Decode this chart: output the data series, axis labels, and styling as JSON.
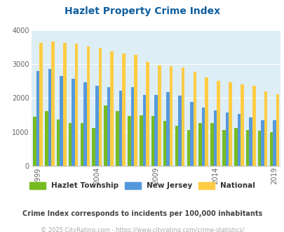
{
  "title": "Hazlet Property Crime Index",
  "title_color": "#1060a0",
  "background_color": "#ddeef6",
  "fig_background": "#ffffff",
  "years": [
    1999,
    2000,
    2001,
    2002,
    2003,
    2004,
    2005,
    2006,
    2007,
    2008,
    2009,
    2010,
    2011,
    2012,
    2013,
    2014,
    2015,
    2016,
    2017,
    2018,
    2019
  ],
  "hazlet": [
    1440,
    1620,
    1370,
    1260,
    1260,
    1110,
    1780,
    1620,
    1470,
    1500,
    1460,
    1320,
    1190,
    1060,
    1270,
    1260,
    1050,
    1110,
    1050,
    1040,
    1000
  ],
  "nj": [
    2790,
    2850,
    2650,
    2560,
    2470,
    2360,
    2310,
    2210,
    2310,
    2100,
    2100,
    2180,
    2070,
    1890,
    1720,
    1630,
    1570,
    1540,
    1430,
    1350,
    1350
  ],
  "national": [
    3620,
    3660,
    3620,
    3610,
    3530,
    3480,
    3370,
    3310,
    3270,
    3060,
    2960,
    2950,
    2900,
    2770,
    2600,
    2510,
    2470,
    2400,
    2360,
    2200,
    2110
  ],
  "hazlet_color": "#77bb22",
  "nj_color": "#5599dd",
  "national_color": "#ffcc44",
  "ylim": [
    0,
    4000
  ],
  "yticks": [
    0,
    1000,
    2000,
    3000,
    4000
  ],
  "xtick_years": [
    1999,
    2004,
    2009,
    2014,
    2019
  ],
  "legend_labels": [
    "Hazlet Township",
    "New Jersey",
    "National"
  ],
  "subtitle": "Crime Index corresponds to incidents per 100,000 inhabitants",
  "subtitle_color": "#444444",
  "footer": "© 2025 CityRating.com - https://www.cityrating.com/crime-statistics/",
  "footer_color": "#aaaaaa",
  "grid_color": "#ffffff",
  "bar_width": 0.27
}
